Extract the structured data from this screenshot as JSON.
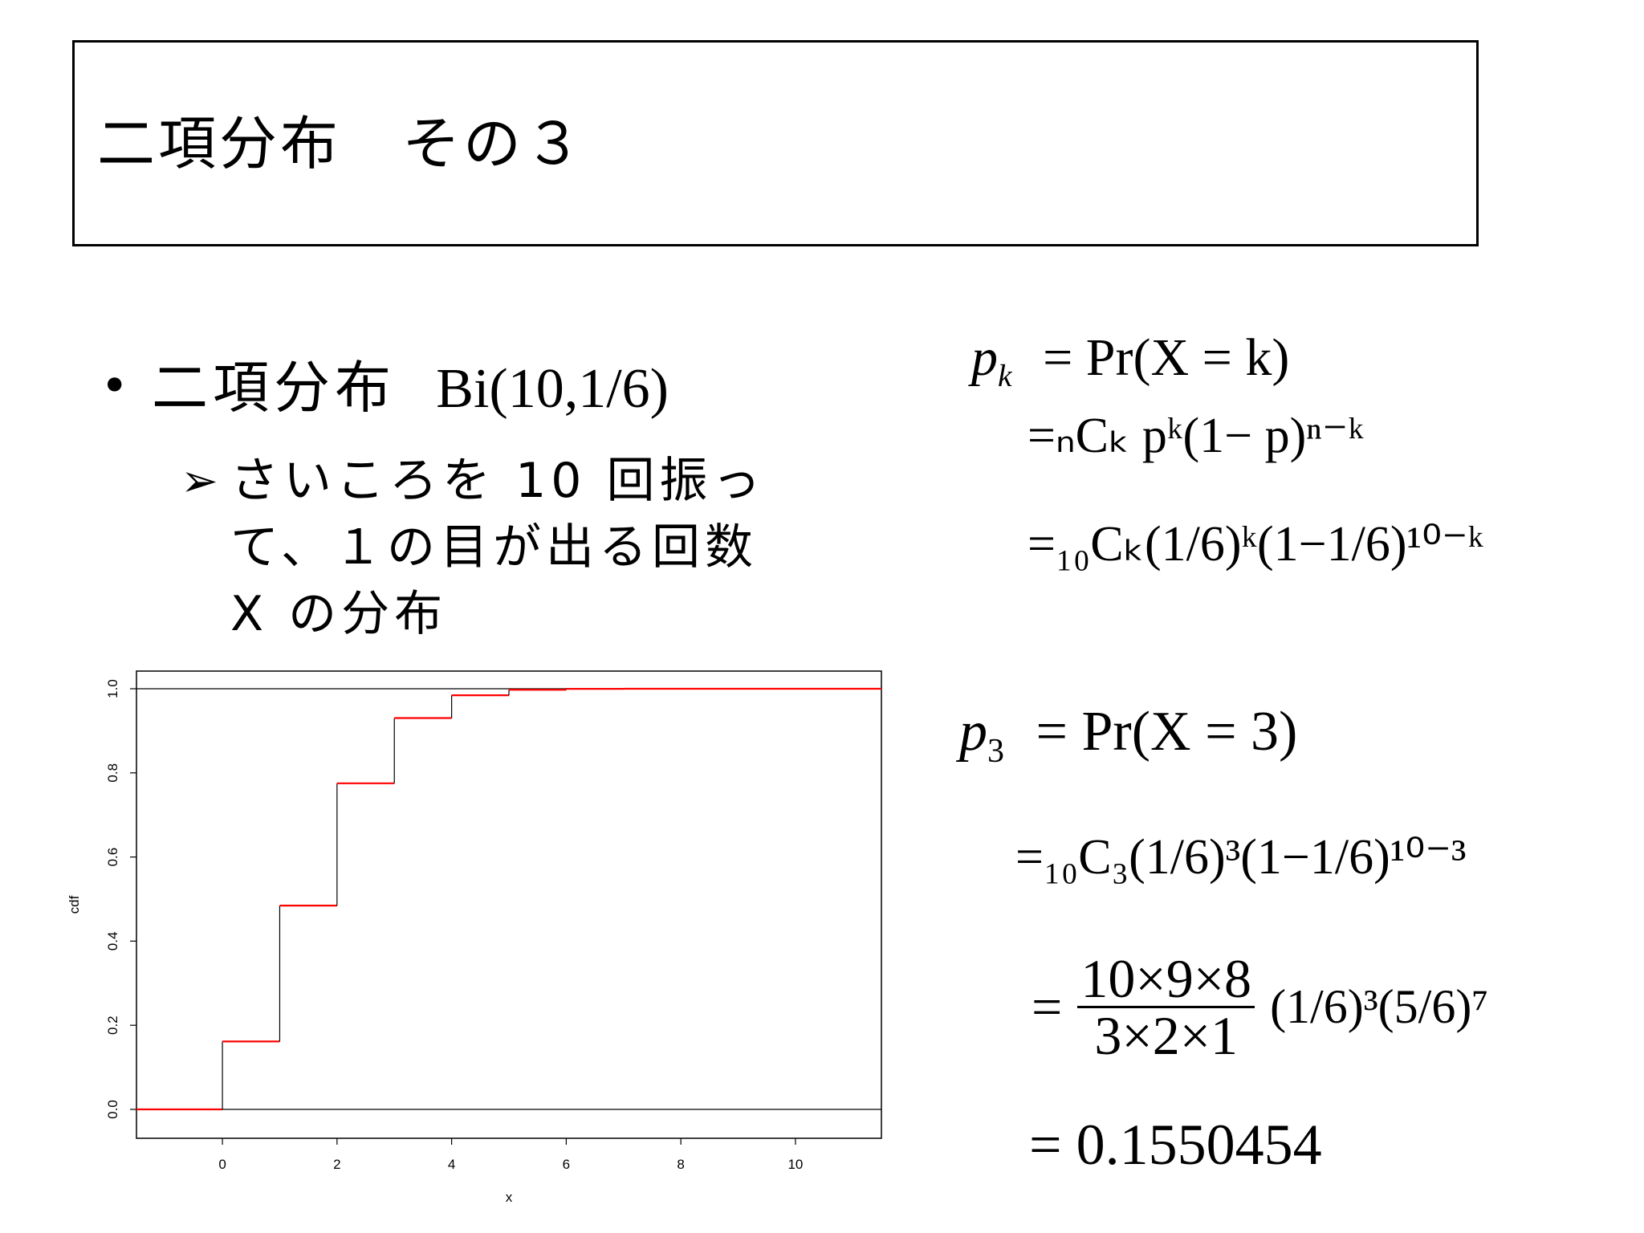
{
  "slide": {
    "title": "二項分布　その３"
  },
  "bullet": {
    "jp_label": "二項分布",
    "math_label": "Bi(10,1/6)",
    "sub_lines": [
      "さいころを 10 回振っ",
      "て、１の目が出る回数",
      "X の分布"
    ]
  },
  "formula_general": {
    "line1_lhs": "p",
    "line1_lhs_sub": "k",
    "line1_rhs": "= Pr(X = k)",
    "line2": "=ₙCₖ pᵏ(1− p)ⁿ⁻ᵏ",
    "line3": "=₁₀Cₖ(1/6)ᵏ(1−1/6)¹⁰⁻ᵏ"
  },
  "formula_specific": {
    "line1_lhs": "p",
    "line1_lhs_sub": "3",
    "line1_rhs": "= Pr(X = 3)",
    "line2": "=₁₀C₃(1/6)³(1−1/6)¹⁰⁻³",
    "line3_num": "10×9×8",
    "line3_den": "3×2×1",
    "line3_rest": "(1/6)³(5/6)⁷",
    "line4": "= 0.1550454"
  },
  "chart_data": {
    "type": "line",
    "step": true,
    "xlabel": "x",
    "ylabel": "cdf",
    "xlim": [
      -1.5,
      11.5
    ],
    "ylim": [
      0,
      1.0
    ],
    "x_ticks": [
      0,
      2,
      4,
      6,
      8,
      10
    ],
    "y_ticks": [
      0.0,
      0.2,
      0.4,
      0.6,
      0.8,
      1.0
    ],
    "x_tick_labels": [
      "0",
      "2",
      "4",
      "6",
      "8",
      "10"
    ],
    "y_tick_labels": [
      "0.0",
      "0.2",
      "0.4",
      "0.6",
      "0.8",
      "1.0"
    ],
    "reference_lines_y": [
      0,
      1
    ],
    "series": [
      {
        "x": [
          -1.5,
          0,
          1,
          2,
          3,
          4,
          5,
          6,
          7,
          8,
          9,
          10
        ],
        "y": [
          0,
          0.1615,
          0.4845,
          0.7752,
          0.9303,
          0.9845,
          0.9976,
          0.9997,
          1.0,
          1.0,
          1.0,
          1.0
        ],
        "color": "#ff0000"
      }
    ]
  }
}
